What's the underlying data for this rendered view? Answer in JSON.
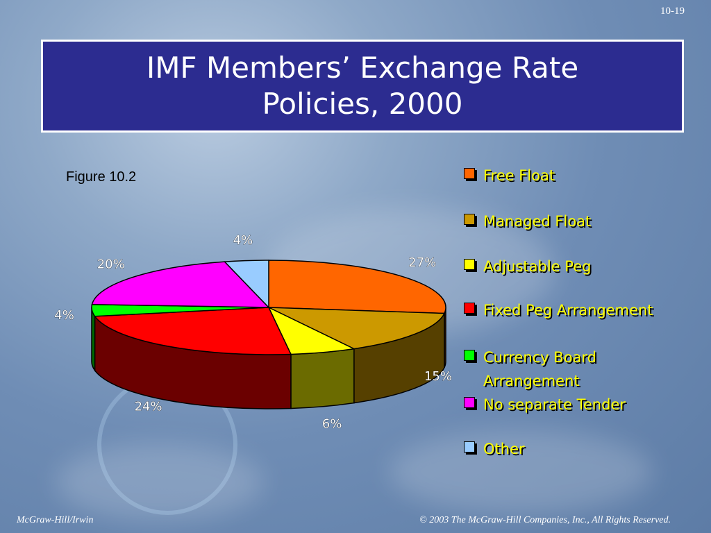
{
  "slide": {
    "page_number": "10-19",
    "title_line1": "IMF Members’ Exchange Rate",
    "title_line2": "Policies, 2000",
    "figure_label": "Figure 10.2",
    "footer_left": "McGraw-Hill/Irwin",
    "footer_right": "© 2003 The McGraw-Hill Companies, Inc., All Rights Reserved."
  },
  "chart_data": {
    "type": "pie",
    "title": "IMF Members’ Exchange Rate Policies, 2000",
    "legend_position": "right",
    "slices": [
      {
        "name": "Free Float",
        "value": 27,
        "label": "27%",
        "color": "#ff6600"
      },
      {
        "name": "Managed Float",
        "value": 15,
        "label": "15%",
        "color": "#cc9900"
      },
      {
        "name": "Adjustable Peg",
        "value": 6,
        "label": "6%",
        "color": "#ffff00"
      },
      {
        "name": "Fixed Peg Arrangement",
        "value": 24,
        "label": "24%",
        "color": "#ff0000"
      },
      {
        "name": "Currency Board Arrangement",
        "value": 4,
        "label": "4%",
        "color": "#00ff00"
      },
      {
        "name": "No separate Tender",
        "value": 20,
        "label": "20%",
        "color": "#ff00ff"
      },
      {
        "name": "Other",
        "value": 4,
        "label": "4%",
        "color": "#99ccff"
      }
    ]
  }
}
